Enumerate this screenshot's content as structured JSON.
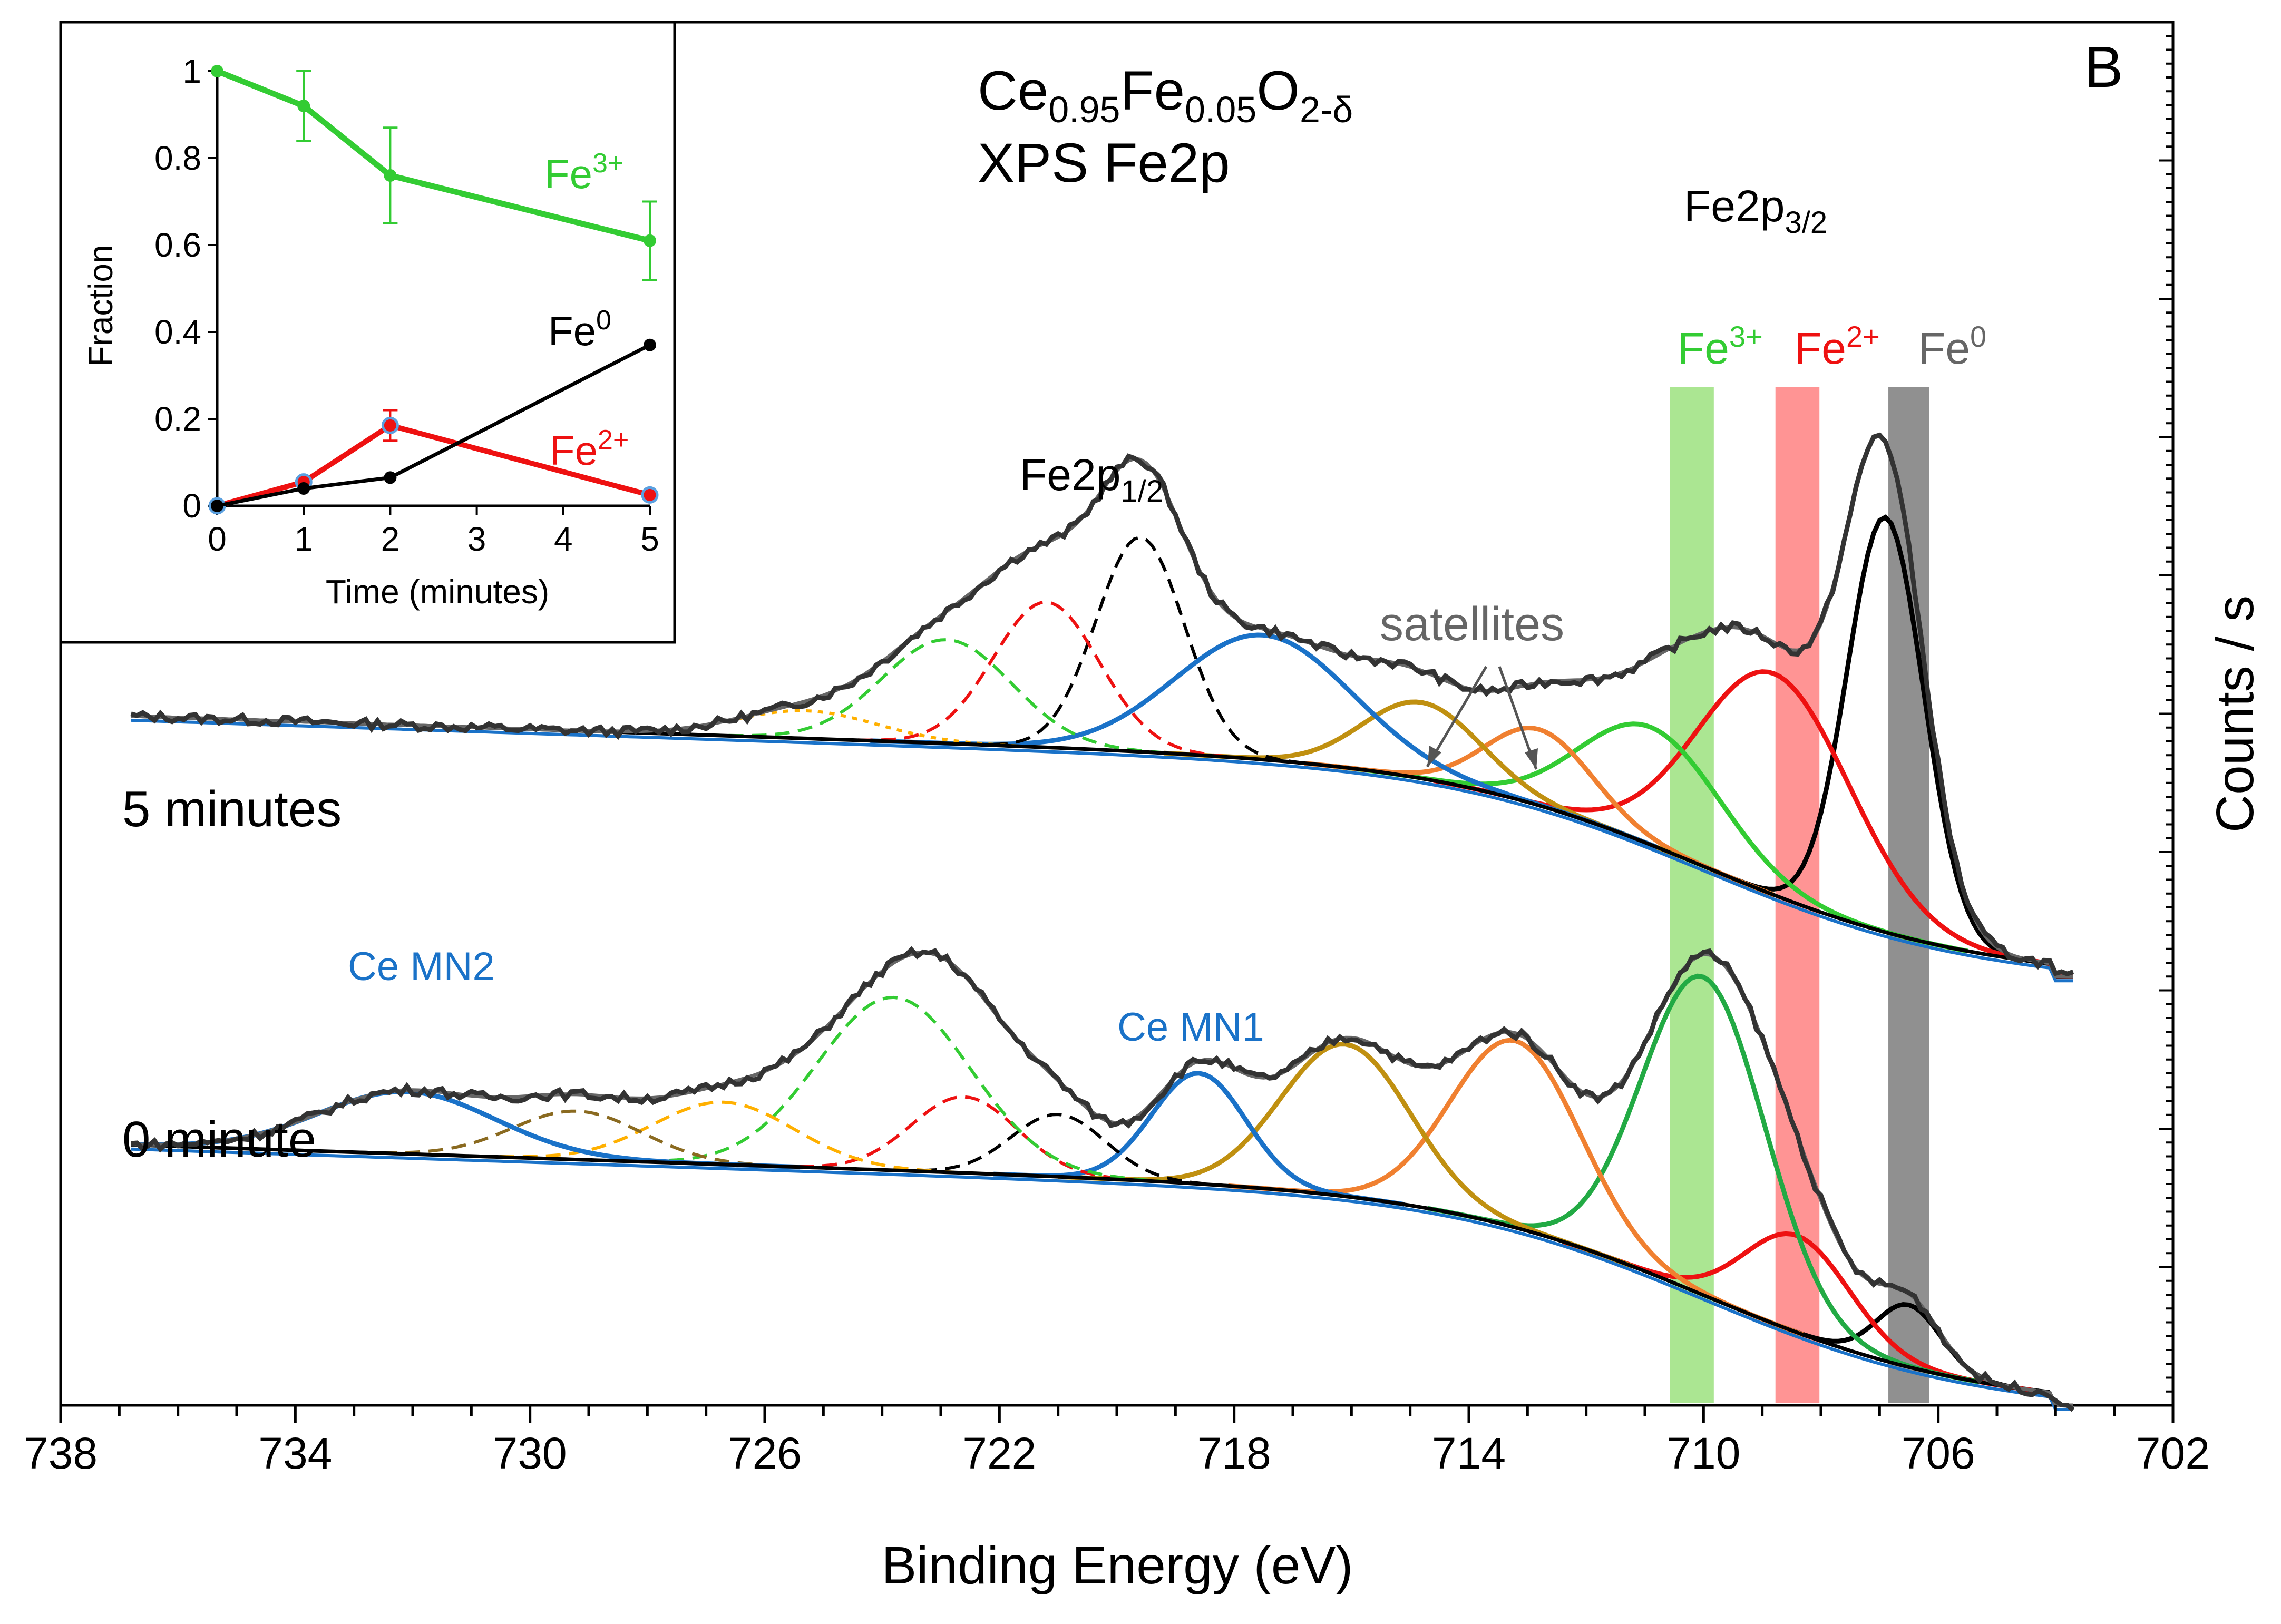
{
  "chart_data": {
    "type": "line",
    "panel_label": "B",
    "title": {
      "main": "Ce",
      "sub1": "0.95",
      "el2": "Fe",
      "sub2": "0.05",
      "el3": "O",
      "sub3": "2-δ",
      "line2": "XPS Fe2p"
    },
    "xlabel": "Binding Energy (eV)",
    "ylabel": "Counts / s",
    "xlim": [
      738,
      702
    ],
    "ylim": [
      0,
      10
    ],
    "x_ticks": [
      "738",
      "734",
      "730",
      "726",
      "722",
      "718",
      "714",
      "710",
      "706",
      "702"
    ],
    "grid": false,
    "annotations": {
      "fe2p12": {
        "main": "Fe2p",
        "sub": "1/2"
      },
      "fe2p32": {
        "main": "Fe2p",
        "sub": "3/2"
      },
      "satellites": "satellites",
      "ce_mn1": "Ce MN1",
      "ce_mn2": "Ce MN2",
      "label_5min": "5 minutes",
      "label_0min": "0 minute"
    },
    "bands": [
      {
        "name": "Fe3+",
        "label_main": "Fe",
        "label_sup": "3+",
        "center": 710.2,
        "width": 0.75,
        "color": "#7ed957"
      },
      {
        "name": "Fe2+",
        "label_main": "Fe",
        "label_sup": "2+",
        "center": 708.4,
        "width": 0.75,
        "color": "#ff5a5a"
      },
      {
        "name": "Fe0",
        "label_main": "Fe",
        "label_sup": "0",
        "center": 706.5,
        "width": 0.7,
        "color": "#555555"
      }
    ],
    "spectra": [
      {
        "name": "5 minutes",
        "baseline": {
          "left": 5.0,
          "right": 3.1
        },
        "components": [
          {
            "name": "Fe0 2p3/2",
            "center": 706.9,
            "height": 3.0,
            "width": 0.65,
            "color": "#000000",
            "style": "solid"
          },
          {
            "name": "Fe2+ 2p3/2",
            "center": 708.8,
            "height": 1.6,
            "width": 1.3,
            "color": "#ee1111",
            "style": "solid"
          },
          {
            "name": "Fe3+ 2p3/2",
            "center": 710.9,
            "height": 0.85,
            "width": 1.2,
            "color": "#33cc33",
            "style": "solid"
          },
          {
            "name": "Fe3+ sat",
            "center": 712.8,
            "height": 0.55,
            "width": 0.9,
            "color": "#f08030",
            "style": "solid"
          },
          {
            "name": "Fe2+ sat",
            "center": 714.8,
            "height": 0.55,
            "width": 1.0,
            "color": "#c09010",
            "style": "solid"
          },
          {
            "name": "Ce MN1",
            "center": 717.5,
            "height": 0.9,
            "width": 1.5,
            "color": "#1a72c8",
            "style": "solid"
          },
          {
            "name": "Fe0 2p1/2",
            "center": 719.6,
            "height": 1.55,
            "width": 0.75,
            "color": "#000000",
            "style": "dashed"
          },
          {
            "name": "Fe2+ 2p1/2",
            "center": 721.2,
            "height": 1.05,
            "width": 0.9,
            "color": "#ee1111",
            "style": "dashed"
          },
          {
            "name": "Fe3+ 2p1/2",
            "center": 722.9,
            "height": 0.75,
            "width": 1.1,
            "color": "#33cc33",
            "style": "dashed"
          },
          {
            "name": "Fe3+ 2p1/2 sat",
            "center": 725.3,
            "height": 0.2,
            "width": 1.2,
            "color": "#ffb000",
            "style": "dotted"
          }
        ]
      },
      {
        "name": "0 minute",
        "baseline": {
          "left": 1.9,
          "right": 0.0
        },
        "components": [
          {
            "name": "Fe0 2p3/2",
            "center": 706.5,
            "height": 0.45,
            "width": 0.55,
            "color": "#000000",
            "style": "solid"
          },
          {
            "name": "Fe2+ 2p3/2",
            "center": 708.4,
            "height": 0.7,
            "width": 0.9,
            "color": "#ee1111",
            "style": "solid"
          },
          {
            "name": "Fe3+ 2p3/2",
            "center": 710.0,
            "height": 2.3,
            "width": 1.05,
            "color": "#22aa44",
            "style": "solid"
          },
          {
            "name": "Fe3+ sat",
            "center": 713.2,
            "height": 1.35,
            "width": 1.1,
            "color": "#f08030",
            "style": "solid"
          },
          {
            "name": "Fe2+ sat",
            "center": 716.1,
            "height": 1.1,
            "width": 1.1,
            "color": "#c09010",
            "style": "solid"
          },
          {
            "name": "Ce MN1",
            "center": 718.6,
            "height": 0.8,
            "width": 0.8,
            "color": "#1a72c8",
            "style": "solid"
          },
          {
            "name": "Fe0 2p1/2",
            "center": 721.0,
            "height": 0.45,
            "width": 0.8,
            "color": "#000000",
            "style": "dashed"
          },
          {
            "name": "Fe2+ 2p1/2",
            "center": 722.6,
            "height": 0.55,
            "width": 0.9,
            "color": "#ee1111",
            "style": "dashed"
          },
          {
            "name": "Fe3+ 2p1/2",
            "center": 723.8,
            "height": 1.25,
            "width": 1.3,
            "color": "#33cc33",
            "style": "dashed"
          },
          {
            "name": "Fe3+ 2p1/2 sat",
            "center": 726.7,
            "height": 0.45,
            "width": 1.2,
            "color": "#ffb000",
            "style": "dashed"
          },
          {
            "name": "Fe2+ 2p1/2 sat",
            "center": 729.2,
            "height": 0.35,
            "width": 1.1,
            "color": "#8a6a20",
            "style": "dashed"
          },
          {
            "name": "Ce MN2",
            "center": 732.1,
            "height": 0.45,
            "width": 1.5,
            "color": "#1a72c8",
            "style": "solid"
          }
        ]
      }
    ],
    "inset": {
      "type": "line",
      "xlabel": "Time (minutes)",
      "ylabel": "Fraction",
      "xlim": [
        0,
        5
      ],
      "ylim": [
        0,
        1
      ],
      "x_ticks": [
        "0",
        "1",
        "2",
        "3",
        "4",
        "5"
      ],
      "y_ticks": [
        "0",
        "0.2",
        "0.4",
        "0.6",
        "0.8",
        "1"
      ],
      "x": [
        0,
        1,
        2,
        5
      ],
      "series": [
        {
          "name": "Fe3+",
          "label_main": "Fe",
          "label_sup": "3+",
          "color": "#33cc33",
          "values": [
            1.0,
            0.92,
            0.76,
            0.61
          ],
          "errors": [
            0.0,
            0.08,
            0.11,
            0.09
          ]
        },
        {
          "name": "Fe2+",
          "label_main": "Fe",
          "label_sup": "2+",
          "color": "#ee1111",
          "values": [
            0.0,
            0.055,
            0.185,
            0.025
          ],
          "errors": [
            0.0,
            0.0,
            0.035,
            0.0
          ]
        },
        {
          "name": "Fe0",
          "label_main": "Fe",
          "label_sup": "0",
          "color": "#000000",
          "values": [
            0.0,
            0.04,
            0.065,
            0.37
          ],
          "errors": [
            0.0,
            0.0,
            0.0,
            0.0
          ]
        }
      ]
    }
  },
  "colors": {
    "fit_envelope": "#666666",
    "measured": "#333333",
    "background_line": "#1a72c8"
  }
}
